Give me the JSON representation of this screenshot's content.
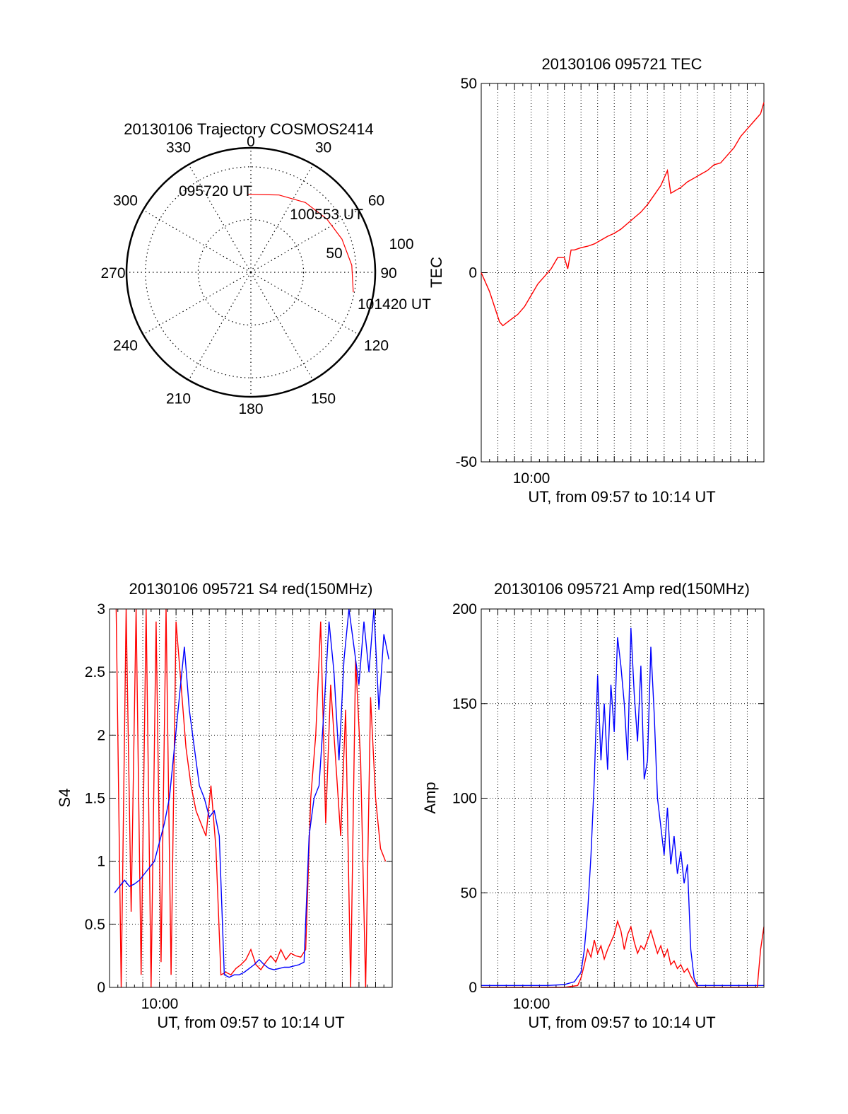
{
  "chart_data": [
    {
      "type": "polar",
      "title": "20130106 Trajectory COSMOS2414",
      "azimuth_labels": [
        "0",
        "30",
        "60",
        "90",
        "120",
        "150",
        "180",
        "210",
        "240",
        "270",
        "300",
        "330"
      ],
      "ring_labels": [
        "50",
        "100"
      ],
      "track": {
        "color": "#ff0000",
        "points": [
          {
            "az": 358,
            "zen": 74
          },
          {
            "az": 20,
            "zen": 78
          },
          {
            "az": 38,
            "zen": 84
          },
          {
            "az": 55,
            "zen": 88
          },
          {
            "az": 70,
            "zen": 92
          },
          {
            "az": 86,
            "zen": 96
          },
          {
            "az": 101,
            "zen": 99
          }
        ],
        "annotations": [
          {
            "text": "095720 UT"
          },
          {
            "text": "100553 UT"
          },
          {
            "text": "101420 UT"
          }
        ]
      },
      "grid": true
    },
    {
      "type": "line",
      "title": "20130106 095721 TEC",
      "xlabel": "UT, from 09:57 to 10:14 UT",
      "ylabel": "TEC",
      "x_tick_labels": [
        "10:00"
      ],
      "y_tick_labels": [
        "50",
        "0",
        "-50"
      ],
      "xlim": [
        0,
        17
      ],
      "ylim": [
        -50,
        50
      ],
      "grid": true,
      "series": [
        {
          "color": "#ff0000",
          "x": [
            0,
            0.2,
            0.5,
            0.8,
            1.1,
            1.3,
            1.6,
            1.9,
            2.2,
            2.6,
            3.0,
            3.4,
            3.8,
            4.2,
            4.6,
            5.0,
            5.2,
            5.4,
            5.6,
            5.8,
            6.0,
            6.4,
            6.8,
            7.2,
            7.6,
            8.0,
            8.4,
            8.8,
            9.2,
            9.6,
            10.0,
            10.4,
            10.8,
            11.2,
            11.4,
            11.6,
            11.8,
            12.0,
            12.4,
            12.8,
            13.2,
            13.6,
            14.0,
            14.4,
            14.8,
            15.2,
            15.6,
            16.0,
            16.4,
            16.8,
            17.0
          ],
          "y": [
            0,
            -2,
            -5,
            -9,
            -13,
            -14,
            -13,
            -12,
            -11,
            -9,
            -6,
            -3,
            -1,
            1,
            4,
            4,
            1,
            6,
            6,
            6.3,
            6.6,
            7,
            7.6,
            8.6,
            9.6,
            10.4,
            11.5,
            13,
            14.5,
            16,
            18,
            20.5,
            23,
            27,
            21,
            21.5,
            22,
            22.5,
            24,
            25,
            26,
            27,
            28.5,
            29,
            31,
            33,
            36,
            38,
            40,
            42,
            45
          ]
        }
      ]
    },
    {
      "type": "line",
      "title": "20130106 095721 S4 red(150MHz)",
      "xlabel": "UT, from 09:57 to 10:14 UT",
      "ylabel": "S4",
      "x_tick_labels": [
        "10:00"
      ],
      "y_tick_labels": [
        "0",
        "0.5",
        "1",
        "1.5",
        "2",
        "2.5",
        "3"
      ],
      "xlim": [
        0,
        17
      ],
      "ylim": [
        0,
        3
      ],
      "grid": true,
      "series": [
        {
          "color": "#ff0000",
          "x": [
            0.4,
            0.7,
            1.0,
            1.3,
            1.6,
            1.9,
            2.2,
            2.5,
            2.8,
            3.1,
            3.4,
            3.7,
            4.0,
            4.3,
            4.6,
            4.9,
            5.2,
            5.5,
            5.8,
            6.1,
            6.4,
            6.7,
            7.0,
            7.3,
            7.6,
            7.9,
            8.2,
            8.5,
            8.8,
            9.1,
            9.4,
            9.7,
            10.0,
            10.3,
            10.6,
            10.9,
            11.2,
            11.5,
            11.8,
            12.1,
            12.4,
            12.7,
            13.0,
            13.3,
            13.6,
            13.9,
            14.2,
            14.5,
            14.8,
            15.1,
            15.4,
            15.7,
            16.0,
            16.3,
            16.6
          ],
          "y": [
            3.0,
            0.0,
            3.0,
            0.6,
            3.0,
            0.1,
            3.0,
            0.0,
            2.9,
            0.2,
            3.0,
            0.1,
            2.9,
            2.4,
            1.9,
            1.6,
            1.4,
            1.3,
            1.2,
            1.6,
            1.1,
            0.1,
            0.12,
            0.1,
            0.15,
            0.18,
            0.22,
            0.3,
            0.18,
            0.14,
            0.2,
            0.25,
            0.2,
            0.3,
            0.22,
            0.27,
            0.25,
            0.24,
            0.3,
            1.5,
            2.0,
            2.9,
            1.3,
            2.4,
            1.8,
            1.2,
            2.2,
            0.0,
            2.6,
            1.8,
            0.0,
            2.3,
            1.5,
            1.1,
            1.0
          ]
        },
        {
          "color": "#0000ff",
          "x": [
            0.3,
            0.6,
            0.9,
            1.2,
            1.5,
            1.8,
            2.1,
            2.4,
            2.7,
            3.0,
            3.3,
            3.6,
            3.9,
            4.2,
            4.5,
            4.8,
            5.1,
            5.4,
            5.7,
            6.0,
            6.3,
            6.6,
            6.9,
            7.2,
            7.5,
            7.8,
            8.1,
            8.4,
            8.7,
            9.0,
            9.3,
            9.6,
            9.9,
            10.2,
            10.5,
            10.8,
            11.1,
            11.4,
            11.7,
            12.0,
            12.3,
            12.6,
            12.9,
            13.2,
            13.5,
            13.8,
            14.1,
            14.4,
            14.7,
            15.0,
            15.3,
            15.6,
            15.9,
            16.2,
            16.5,
            16.8
          ],
          "y": [
            0.75,
            0.8,
            0.85,
            0.8,
            0.82,
            0.85,
            0.9,
            0.95,
            1.0,
            1.15,
            1.3,
            1.5,
            1.9,
            2.3,
            2.7,
            2.2,
            1.9,
            1.6,
            1.5,
            1.35,
            1.4,
            1.2,
            0.1,
            0.08,
            0.1,
            0.1,
            0.12,
            0.15,
            0.18,
            0.22,
            0.18,
            0.15,
            0.14,
            0.15,
            0.16,
            0.16,
            0.17,
            0.18,
            0.2,
            1.2,
            1.5,
            1.6,
            2.2,
            2.9,
            2.5,
            1.8,
            2.6,
            3.0,
            2.7,
            2.4,
            2.9,
            2.5,
            3.0,
            2.2,
            2.8,
            2.6
          ]
        }
      ]
    },
    {
      "type": "line",
      "title": "20130106 095721 Amp red(150MHz)",
      "xlabel": "UT, from 09:57 to 10:14 UT",
      "ylabel": "Amp",
      "x_tick_labels": [
        "10:00"
      ],
      "y_tick_labels": [
        "0",
        "50",
        "100",
        "150",
        "200"
      ],
      "xlim": [
        0,
        17
      ],
      "ylim": [
        0,
        200
      ],
      "grid": true,
      "series": [
        {
          "color": "#0000ff",
          "x": [
            0,
            1,
            2,
            3,
            4,
            5,
            5.6,
            6.0,
            6.2,
            6.4,
            6.6,
            6.8,
            7.0,
            7.2,
            7.4,
            7.6,
            7.8,
            8.0,
            8.2,
            8.4,
            8.6,
            8.8,
            9.0,
            9.2,
            9.4,
            9.6,
            9.8,
            10.0,
            10.2,
            10.4,
            10.6,
            10.8,
            11.0,
            11.2,
            11.4,
            11.6,
            11.8,
            12.0,
            12.2,
            12.4,
            12.6,
            12.8,
            13.0,
            14,
            15,
            16,
            17
          ],
          "y": [
            1,
            1,
            1,
            1,
            1,
            1.5,
            3,
            8,
            20,
            40,
            70,
            110,
            165,
            120,
            150,
            115,
            160,
            135,
            185,
            170,
            150,
            120,
            190,
            155,
            130,
            170,
            110,
            120,
            180,
            145,
            100,
            85,
            70,
            95,
            65,
            80,
            60,
            72,
            55,
            65,
            20,
            5,
            1,
            1,
            1,
            1,
            1
          ]
        },
        {
          "color": "#ff0000",
          "x": [
            0,
            5,
            5.8,
            6.0,
            6.2,
            6.4,
            6.6,
            6.8,
            7.0,
            7.2,
            7.4,
            7.6,
            7.8,
            8.0,
            8.2,
            8.4,
            8.6,
            8.8,
            9.0,
            9.2,
            9.4,
            9.6,
            9.8,
            10.0,
            10.2,
            10.4,
            10.6,
            10.8,
            11.0,
            11.2,
            11.4,
            11.6,
            11.8,
            12.0,
            12.2,
            12.4,
            12.6,
            12.8,
            13.0,
            14,
            15,
            16,
            16.6,
            16.8,
            17.0
          ],
          "y": [
            0,
            0,
            1,
            5,
            12,
            20,
            16,
            25,
            18,
            22,
            15,
            20,
            24,
            28,
            35,
            30,
            20,
            28,
            32,
            24,
            18,
            22,
            20,
            25,
            30,
            24,
            18,
            22,
            16,
            20,
            12,
            14,
            10,
            12,
            8,
            10,
            6,
            3,
            0,
            0,
            0,
            0,
            0,
            20,
            32
          ]
        }
      ]
    }
  ]
}
